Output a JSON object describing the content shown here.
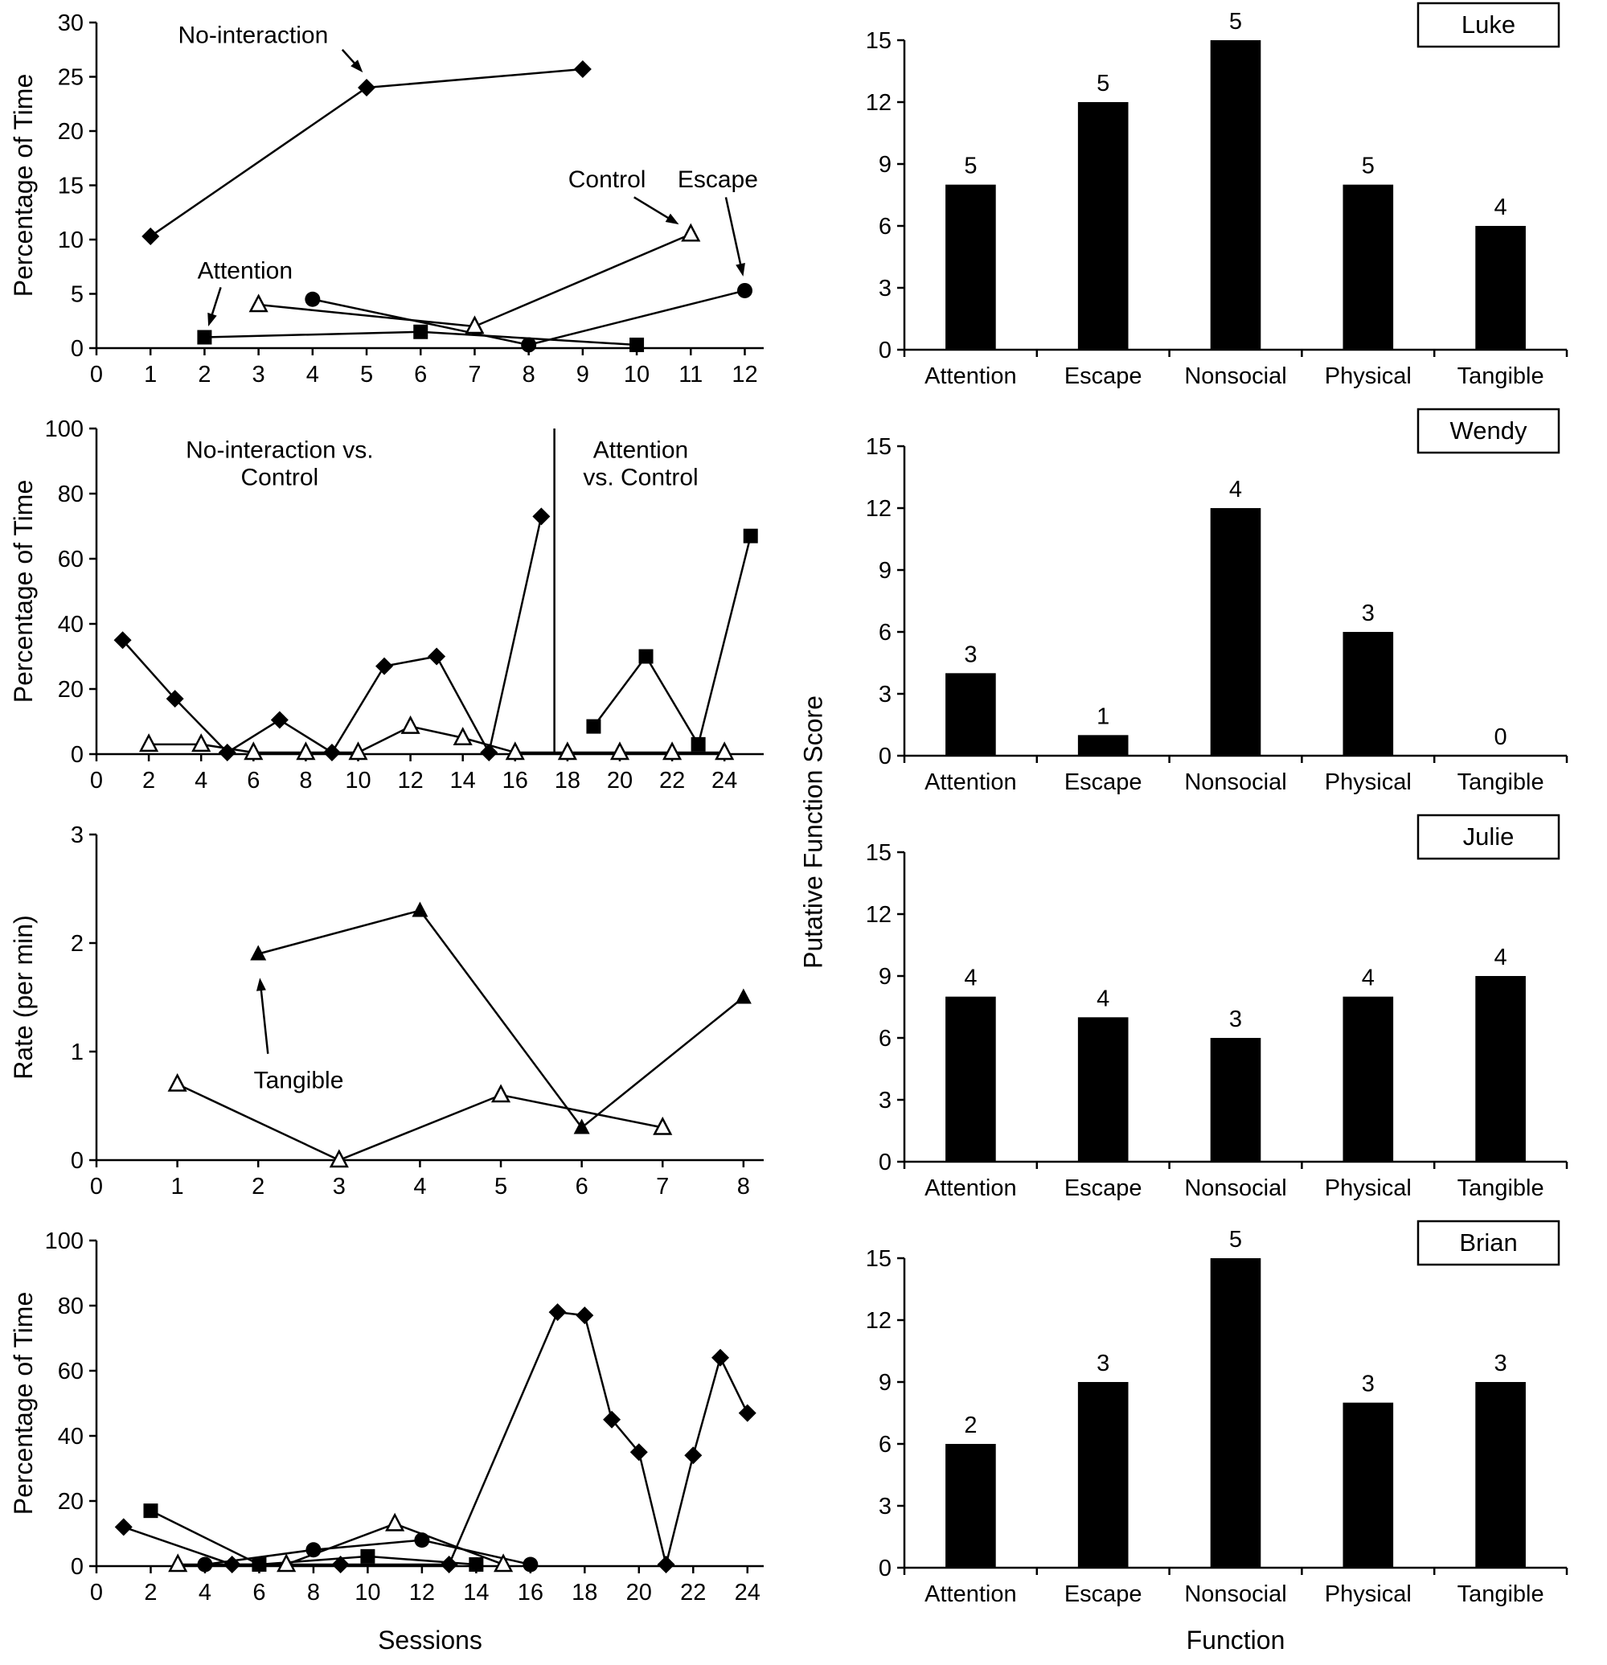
{
  "figure": {
    "left_xlabel": "Sessions",
    "right_xlabel": "Function",
    "right_ylabel": "Putative Function Score",
    "ink_color": "#000000",
    "background_color": "#ffffff",
    "participants": [
      "Luke",
      "Wendy",
      "Julie",
      "Brian"
    ]
  },
  "chart_data": [
    {
      "id": "luke-sessions-line",
      "type": "line",
      "participant": "Luke",
      "ylabel": "Percentage of Time",
      "ylim": [
        0,
        30
      ],
      "yticks": [
        0,
        5,
        10,
        15,
        20,
        25,
        30
      ],
      "xlim": [
        0,
        12.35
      ],
      "xticks": [
        0,
        1,
        2,
        3,
        4,
        5,
        6,
        7,
        8,
        9,
        10,
        11,
        12
      ],
      "series": [
        {
          "name": "No-interaction",
          "marker": "diamond-filled",
          "points": [
            [
              1,
              10.3
            ],
            [
              5,
              24
            ],
            [
              9,
              25.7
            ]
          ]
        },
        {
          "name": "Attention",
          "marker": "square-filled",
          "points": [
            [
              2,
              1
            ],
            [
              6,
              1.5
            ],
            [
              10,
              0.3
            ]
          ]
        },
        {
          "name": "Control",
          "marker": "triangle-open",
          "points": [
            [
              3,
              4
            ],
            [
              7,
              2
            ],
            [
              11,
              10.5
            ]
          ]
        },
        {
          "name": "Escape",
          "marker": "circle-filled",
          "points": [
            [
              4,
              4.5
            ],
            [
              8,
              0.3
            ],
            [
              12,
              5.3
            ]
          ]
        }
      ],
      "annotations": [
        {
          "text": [
            "No-interaction"
          ],
          "xy": [
            2.9,
            28.7
          ],
          "arrow": {
            "from": [
              4.55,
              27.5
            ],
            "to": [
              4.93,
              25.4
            ]
          }
        },
        {
          "text": [
            "Attention"
          ],
          "xy": [
            2.75,
            7.0
          ],
          "arrow": {
            "from": [
              2.3,
              5.6
            ],
            "to": [
              2.07,
              2.0
            ]
          }
        },
        {
          "text": [
            "Control"
          ],
          "xy": [
            9.45,
            15.4
          ],
          "arrow": {
            "from": [
              9.95,
              13.9
            ],
            "to": [
              10.78,
              11.4
            ]
          }
        },
        {
          "text": [
            "Escape"
          ],
          "xy": [
            11.5,
            15.4
          ],
          "arrow": {
            "from": [
              11.65,
              13.9
            ],
            "to": [
              11.97,
              6.6
            ]
          }
        }
      ]
    },
    {
      "id": "luke-function-bar",
      "type": "bar",
      "participant": "Luke",
      "ylim": [
        0,
        15
      ],
      "yticks": [
        0,
        3,
        6,
        9,
        12,
        15
      ],
      "categories": [
        "Attention",
        "Escape",
        "Nonsocial",
        "Physical",
        "Tangible"
      ],
      "values": [
        8,
        12,
        15,
        8,
        6
      ],
      "bar_labels": [
        "5",
        "5",
        "5",
        "5",
        "4"
      ]
    },
    {
      "id": "wendy-sessions-line",
      "type": "line",
      "participant": "Wendy",
      "ylabel": "Percentage of Time",
      "ylim": [
        0,
        100
      ],
      "yticks": [
        0,
        20,
        40,
        60,
        80,
        100
      ],
      "xlim": [
        0,
        25.5
      ],
      "xticks": [
        0,
        2,
        4,
        6,
        8,
        10,
        12,
        14,
        16,
        18,
        20,
        22,
        24
      ],
      "phase_divider_x": 17.5,
      "series": [
        {
          "name": "No-interaction",
          "marker": "diamond-filled",
          "points": [
            [
              1,
              35
            ],
            [
              3,
              17
            ],
            [
              5,
              0.5
            ],
            [
              7,
              10.5
            ],
            [
              9,
              0.5
            ],
            [
              11,
              27
            ],
            [
              13,
              30
            ],
            [
              15,
              0.5
            ],
            [
              17,
              73
            ]
          ]
        },
        {
          "name": "Control",
          "marker": "triangle-open",
          "points": [
            [
              2,
              3
            ],
            [
              4,
              3
            ],
            [
              6,
              0.5
            ],
            [
              8,
              0.5
            ],
            [
              10,
              0.5
            ],
            [
              12,
              8.5
            ],
            [
              14,
              5
            ],
            [
              16,
              0.5
            ],
            [
              18,
              0.5
            ],
            [
              20,
              0.5
            ],
            [
              22,
              0.5
            ],
            [
              24,
              0.5
            ]
          ]
        },
        {
          "name": "Attention",
          "marker": "square-filled",
          "points": [
            [
              19,
              8.5
            ],
            [
              21,
              30
            ],
            [
              23,
              3
            ],
            [
              25,
              67
            ]
          ]
        }
      ],
      "annotations": [
        {
          "text": [
            "No-interaction vs.",
            "Control"
          ],
          "xy": [
            7,
            93
          ]
        },
        {
          "text": [
            "Attention",
            "vs. Control"
          ],
          "xy": [
            20.8,
            93
          ]
        }
      ]
    },
    {
      "id": "wendy-function-bar",
      "type": "bar",
      "participant": "Wendy",
      "ylim": [
        0,
        15
      ],
      "yticks": [
        0,
        3,
        6,
        9,
        12,
        15
      ],
      "categories": [
        "Attention",
        "Escape",
        "Nonsocial",
        "Physical",
        "Tangible"
      ],
      "values": [
        4,
        1,
        12,
        6,
        0
      ],
      "bar_labels": [
        "3",
        "1",
        "4",
        "3",
        "0"
      ]
    },
    {
      "id": "julie-sessions-line",
      "type": "line",
      "participant": "Julie",
      "ylabel": "Rate (per min)",
      "ylim": [
        0,
        3
      ],
      "yticks": [
        0,
        1,
        2,
        3
      ],
      "xlim": [
        0,
        8.25
      ],
      "xticks": [
        0,
        1,
        2,
        3,
        4,
        5,
        6,
        7,
        8
      ],
      "series": [
        {
          "name": "Tangible",
          "marker": "triangle-filled",
          "points": [
            [
              2,
              1.9
            ],
            [
              4,
              2.3
            ],
            [
              6,
              0.3
            ],
            [
              8,
              1.5
            ]
          ]
        },
        {
          "name": "Control",
          "marker": "triangle-open",
          "points": [
            [
              1,
              0.7
            ],
            [
              3,
              0
            ],
            [
              5,
              0.6
            ],
            [
              7,
              0.3
            ]
          ]
        }
      ],
      "annotations": [
        {
          "text": [
            "Tangible"
          ],
          "xy": [
            2.5,
            0.72
          ],
          "arrow": {
            "from": [
              2.12,
              0.98
            ],
            "to": [
              2.02,
              1.68
            ]
          }
        }
      ]
    },
    {
      "id": "julie-function-bar",
      "type": "bar",
      "participant": "Julie",
      "ylim": [
        0,
        15
      ],
      "yticks": [
        0,
        3,
        6,
        9,
        12,
        15
      ],
      "categories": [
        "Attention",
        "Escape",
        "Nonsocial",
        "Physical",
        "Tangible"
      ],
      "values": [
        8,
        7,
        6,
        8,
        9
      ],
      "bar_labels": [
        "4",
        "4",
        "3",
        "4",
        "4"
      ]
    },
    {
      "id": "brian-sessions-line",
      "type": "line",
      "participant": "Brian",
      "ylabel": "Percentage of Time",
      "ylim": [
        0,
        100
      ],
      "yticks": [
        0,
        20,
        40,
        60,
        80,
        100
      ],
      "xlim": [
        0,
        24.6
      ],
      "xticks": [
        0,
        2,
        4,
        6,
        8,
        10,
        12,
        14,
        16,
        18,
        20,
        22,
        24
      ],
      "series": [
        {
          "name": "No-interaction",
          "marker": "diamond-filled",
          "points": [
            [
              1,
              12
            ],
            [
              5,
              0.5
            ],
            [
              9,
              0.5
            ],
            [
              13,
              0.5
            ],
            [
              17,
              78
            ],
            [
              18,
              77
            ],
            [
              19,
              45
            ],
            [
              20,
              35
            ],
            [
              21,
              0.5
            ],
            [
              22,
              34
            ],
            [
              23,
              64
            ],
            [
              24,
              47
            ]
          ]
        },
        {
          "name": "Attention",
          "marker": "square-filled",
          "points": [
            [
              2,
              17
            ],
            [
              6,
              0.5
            ],
            [
              10,
              3
            ],
            [
              14,
              0.5
            ]
          ]
        },
        {
          "name": "Control",
          "marker": "triangle-open",
          "points": [
            [
              3,
              0.5
            ],
            [
              7,
              0.5
            ],
            [
              11,
              13
            ],
            [
              15,
              0.5
            ]
          ]
        },
        {
          "name": "Escape",
          "marker": "circle-filled",
          "points": [
            [
              4,
              0.5
            ],
            [
              8,
              5
            ],
            [
              12,
              8
            ],
            [
              16,
              0.5
            ]
          ]
        }
      ]
    },
    {
      "id": "brian-function-bar",
      "type": "bar",
      "participant": "Brian",
      "ylim": [
        0,
        15
      ],
      "yticks": [
        0,
        3,
        6,
        9,
        12,
        15
      ],
      "categories": [
        "Attention",
        "Escape",
        "Nonsocial",
        "Physical",
        "Tangible"
      ],
      "values": [
        6,
        9,
        15,
        8,
        9
      ],
      "bar_labels": [
        "2",
        "3",
        "5",
        "3",
        "3"
      ]
    }
  ]
}
